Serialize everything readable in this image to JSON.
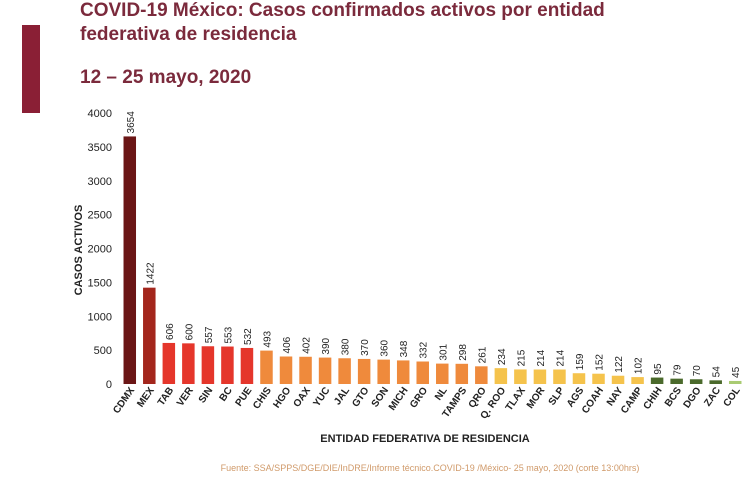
{
  "chart_data": {
    "type": "bar",
    "title": "COVID-19 México: Casos confirmados activos por entidad federativa de residencia",
    "subtitle": "12 – 25 mayo, 2020",
    "y_label": "CASOS ACTIVOS",
    "x_label": "ENTIDAD FEDERATIVA DE  RESIDENCIA",
    "source": "Fuente: SSA/SPPS/DGE/DIE/InDRE/Informe técnico.COVID-19 /México- 25 mayo, 2020 (corte 13:00hrs)",
    "categories": [
      "CDMX",
      "MEX",
      "TAB",
      "VER",
      "SIN",
      "BC",
      "PUE",
      "CHIS",
      "HGO",
      "OAX",
      "YUC",
      "JAL",
      "GTO",
      "SON",
      "MICH",
      "GRO",
      "NL",
      "TAMPS",
      "QRO",
      "Q. ROO",
      "TLAX",
      "MOR",
      "SLP",
      "AGS",
      "COAH",
      "NAY",
      "CAMP",
      "CHIH",
      "BCS",
      "DGO",
      "ZAC",
      "COL"
    ],
    "values": [
      3654,
      1422,
      606,
      600,
      557,
      553,
      532,
      493,
      406,
      402,
      390,
      380,
      370,
      360,
      348,
      332,
      301,
      298,
      261,
      234,
      215,
      214,
      214,
      159,
      152,
      122,
      102,
      95,
      79,
      70,
      54,
      45
    ],
    "colors": [
      "#6b1616",
      "#a3261c",
      "#e5362b",
      "#e5362b",
      "#e5362b",
      "#e5362b",
      "#e5362b",
      "#ef8a3c",
      "#ef8a3c",
      "#ef8a3c",
      "#ef8a3c",
      "#ef8a3c",
      "#ef8a3c",
      "#ef8a3c",
      "#ef8a3c",
      "#ef8a3c",
      "#ef8a3c",
      "#ef8a3c",
      "#ef8a3c",
      "#f5c34c",
      "#f5c34c",
      "#f5c34c",
      "#f5c34c",
      "#f5c34c",
      "#f5c34c",
      "#f5c34c",
      "#f5c34c",
      "#4b6a2c",
      "#4b6a2c",
      "#4b6a2c",
      "#4b6a2c",
      "#a9cb72"
    ],
    "ylim": [
      0,
      4000
    ],
    "yticks": [
      0,
      500,
      1000,
      1500,
      2000,
      2500,
      3000,
      3500,
      4000
    ]
  }
}
